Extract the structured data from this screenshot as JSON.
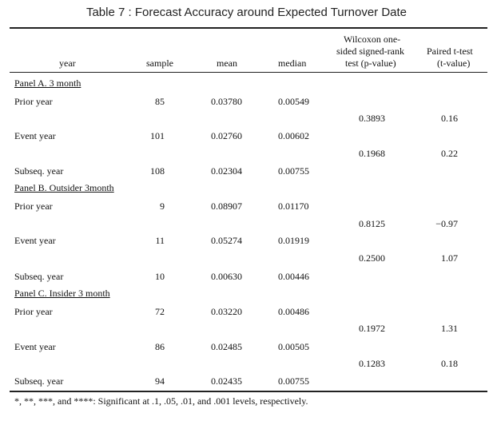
{
  "title": "Table 7 : Forecast Accuracy around Expected Turnover Date",
  "headers": {
    "year": "year",
    "sample": "sample",
    "mean": "mean",
    "median": "median",
    "wilcoxon": [
      "Wilcoxon one-",
      "sided signed-rank",
      "test (p-value)"
    ],
    "ttest": [
      "Paired t-test",
      "(t-value)"
    ]
  },
  "panels": [
    {
      "label": "Panel A. 3 month",
      "rows": [
        {
          "year": "Prior year",
          "sample": "85",
          "mean": "0.03780",
          "median": "0.00549"
        },
        {
          "year": "Event year",
          "sample": "101",
          "mean": "0.02760",
          "median": "0.00602"
        },
        {
          "year": "Subseq. year",
          "sample": "108",
          "mean": "0.02304",
          "median": "0.00755"
        }
      ],
      "tests": [
        {
          "wilcoxon": "0.3893",
          "t": "0.16"
        },
        {
          "wilcoxon": "0.1968",
          "t": "0.22"
        }
      ]
    },
    {
      "label": "Panel B. Outsider 3month",
      "rows": [
        {
          "year": "Prior year",
          "sample": "9",
          "mean": "0.08907",
          "median": "0.01170"
        },
        {
          "year": "Event year",
          "sample": "11",
          "mean": "0.05274",
          "median": "0.01919"
        },
        {
          "year": "Subseq. year",
          "sample": "10",
          "mean": "0.00630",
          "median": "0.00446"
        }
      ],
      "tests": [
        {
          "wilcoxon": "0.8125",
          "t": "−0.97"
        },
        {
          "wilcoxon": "0.2500",
          "t": "1.07"
        }
      ]
    },
    {
      "label": "Panel C. Insider 3 month",
      "rows": [
        {
          "year": "Prior year",
          "sample": "72",
          "mean": "0.03220",
          "median": "0.00486"
        },
        {
          "year": "Event year",
          "sample": "86",
          "mean": "0.02485",
          "median": "0.00505"
        },
        {
          "year": "Subseq. year",
          "sample": "94",
          "mean": "0.02435",
          "median": "0.00755"
        }
      ],
      "tests": [
        {
          "wilcoxon": "0.1972",
          "t": "1.31"
        },
        {
          "wilcoxon": "0.1283",
          "t": "0.18"
        }
      ]
    }
  ],
  "footnote": "*, **, ***, and ****: Significant at .1, .05, .01, and .001 levels, respectively."
}
